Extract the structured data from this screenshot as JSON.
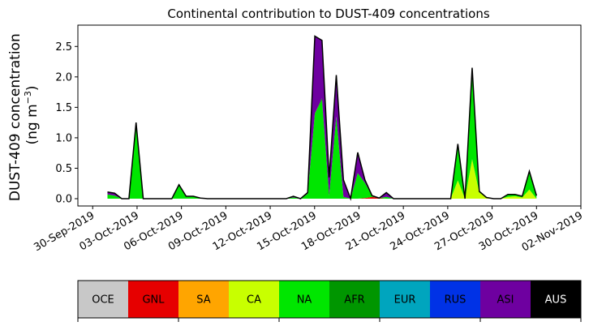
{
  "chart_data": {
    "type": "area",
    "title": "Continental contribution to DUST-409 concentrations",
    "ylabel_line1": "DUST-409 concentration",
    "ylabel_line2_prefix": "(ng m",
    "ylabel_line2_sup": "−3",
    "ylabel_line2_suffix": ")",
    "xlabel": "",
    "x_start": "2019-10-01",
    "x_end": "2019-10-30",
    "xlim": [
      "2019-09-29",
      "2019-11-02"
    ],
    "ylim": [
      -0.12,
      2.85
    ],
    "yticks": [
      0.0,
      0.5,
      1.0,
      1.5,
      2.0,
      2.5
    ],
    "ytick_labels": [
      "0.0",
      "0.5",
      "1.0",
      "1.5",
      "2.0",
      "2.5"
    ],
    "xticks": [
      "2019-09-30",
      "2019-10-03",
      "2019-10-06",
      "2019-10-09",
      "2019-10-12",
      "2019-10-15",
      "2019-10-18",
      "2019-10-21",
      "2019-10-24",
      "2019-10-27",
      "2019-10-30",
      "2019-11-02"
    ],
    "xtick_labels": [
      "30-Sep-2019",
      "03-Oct-2019",
      "06-Oct-2019",
      "09-Oct-2019",
      "12-Oct-2019",
      "15-Oct-2019",
      "18-Oct-2019",
      "21-Oct-2019",
      "24-Oct-2019",
      "27-Oct-2019",
      "30-Oct-2019",
      "02-Nov-2019"
    ],
    "grid": false,
    "legend_position": "bottom",
    "series": [
      {
        "name": "OCE",
        "color": "#c8c8c8",
        "values": [
          0,
          0,
          0,
          0,
          0,
          0,
          0,
          0,
          0,
          0,
          0,
          0,
          0,
          0,
          0,
          0,
          0,
          0,
          0,
          0,
          0,
          0,
          0,
          0,
          0,
          0,
          0,
          0,
          0,
          0,
          0,
          0,
          0,
          0,
          0,
          0,
          0,
          0,
          0,
          0,
          0,
          0,
          0,
          0,
          0,
          0,
          0,
          0,
          0,
          0,
          0,
          0,
          0,
          0,
          0,
          0,
          0,
          0,
          0,
          0,
          0
        ]
      },
      {
        "name": "GNL",
        "color": "#e60000",
        "values": [
          0,
          0,
          0,
          0,
          0,
          0,
          0,
          0,
          0,
          0,
          0,
          0,
          0,
          0,
          0,
          0,
          0,
          0,
          0,
          0,
          0,
          0,
          0,
          0,
          0,
          0,
          0,
          0,
          0,
          0,
          0,
          0,
          0,
          0,
          0,
          0,
          0.01,
          0.03,
          0.01,
          0,
          0,
          0,
          0,
          0,
          0,
          0,
          0,
          0,
          0,
          0,
          0,
          0,
          0,
          0,
          0,
          0,
          0,
          0,
          0,
          0,
          0
        ]
      },
      {
        "name": "SA",
        "color": "#ffa500",
        "values": [
          0,
          0,
          0,
          0,
          0,
          0,
          0,
          0,
          0,
          0,
          0,
          0,
          0,
          0,
          0,
          0,
          0,
          0,
          0,
          0,
          0,
          0,
          0,
          0,
          0,
          0,
          0,
          0,
          0,
          0,
          0,
          0,
          0,
          0,
          0,
          0,
          0,
          0,
          0,
          0,
          0,
          0,
          0,
          0,
          0,
          0,
          0,
          0,
          0,
          0,
          0,
          0,
          0,
          0,
          0,
          0,
          0,
          0,
          0,
          0,
          0
        ]
      },
      {
        "name": "CA",
        "color": "#c8ff00",
        "values": [
          0,
          0,
          0,
          0,
          0,
          0,
          0,
          0,
          0,
          0,
          0,
          0,
          0,
          0,
          0,
          0,
          0,
          0,
          0,
          0,
          0,
          0,
          0,
          0,
          0,
          0,
          0,
          0,
          0,
          0,
          0,
          0,
          0,
          0,
          0,
          0,
          0,
          0,
          0,
          0,
          0,
          0,
          0,
          0,
          0,
          0,
          0,
          0,
          0,
          0.3,
          0,
          0.65,
          0.1,
          0.02,
          0,
          0,
          0.03,
          0.04,
          0.02,
          0.15,
          0
        ]
      },
      {
        "name": "NA",
        "color": "#00e600",
        "values": [
          0.07,
          0.05,
          0,
          0,
          1.25,
          0,
          0,
          0,
          0,
          0,
          0.22,
          0.04,
          0.04,
          0.01,
          0,
          0,
          0,
          0,
          0,
          0,
          0,
          0,
          0,
          0,
          0,
          0,
          0.02,
          0,
          0.08,
          1.4,
          1.62,
          0.05,
          1.35,
          0.03,
          0,
          0.42,
          0.25,
          0.02,
          0,
          0.03,
          0,
          0,
          0,
          0,
          0,
          0,
          0,
          0,
          0,
          0.6,
          0,
          1.5,
          0.02,
          0,
          0,
          0,
          0.04,
          0.03,
          0.02,
          0.3,
          0.03
        ]
      },
      {
        "name": "AFR",
        "color": "#009600",
        "values": [
          0,
          0,
          0,
          0,
          0,
          0,
          0,
          0,
          0,
          0,
          0,
          0,
          0,
          0,
          0,
          0,
          0,
          0,
          0,
          0,
          0,
          0,
          0,
          0,
          0,
          0,
          0,
          0,
          0,
          0,
          0.03,
          0,
          0,
          0,
          0,
          0,
          0,
          0,
          0,
          0,
          0,
          0,
          0,
          0,
          0,
          0,
          0,
          0,
          0,
          0,
          0,
          0,
          0,
          0,
          0,
          0,
          0,
          0,
          0,
          0,
          0
        ]
      },
      {
        "name": "EUR",
        "color": "#00a5be",
        "values": [
          0,
          0,
          0,
          0,
          0,
          0,
          0,
          0,
          0,
          0,
          0,
          0,
          0,
          0,
          0,
          0,
          0,
          0,
          0,
          0,
          0,
          0,
          0,
          0,
          0,
          0,
          0,
          0,
          0,
          0,
          0,
          0,
          0,
          0,
          0,
          0,
          0,
          0,
          0,
          0,
          0,
          0,
          0,
          0,
          0,
          0,
          0,
          0,
          0,
          0,
          0,
          0,
          0,
          0,
          0,
          0,
          0,
          0,
          0,
          0,
          0
        ]
      },
      {
        "name": "RUS",
        "color": "#0032e6",
        "values": [
          0,
          0,
          0,
          0,
          0,
          0,
          0,
          0,
          0,
          0,
          0,
          0,
          0,
          0,
          0,
          0,
          0,
          0,
          0,
          0,
          0,
          0,
          0,
          0,
          0,
          0,
          0,
          0,
          0,
          0,
          0,
          0,
          0,
          0,
          0,
          0,
          0,
          0,
          0,
          0,
          0,
          0,
          0,
          0,
          0,
          0,
          0,
          0,
          0,
          0,
          0,
          0,
          0,
          0,
          0,
          0,
          0,
          0,
          0,
          0,
          0
        ]
      },
      {
        "name": "ASI",
        "color": "#6e00a0",
        "values": [
          0.04,
          0.04,
          0,
          0,
          0,
          0,
          0,
          0,
          0,
          0,
          0.01,
          0,
          0,
          0,
          0,
          0,
          0,
          0,
          0,
          0,
          0,
          0,
          0,
          0,
          0,
          0,
          0.02,
          0,
          0.02,
          1.27,
          0.95,
          0.3,
          0.68,
          0.28,
          0,
          0.34,
          0.05,
          0,
          0,
          0.07,
          0,
          0,
          0,
          0,
          0,
          0,
          0,
          0,
          0,
          0,
          0,
          0,
          0,
          0,
          0,
          0,
          0,
          0,
          0,
          0,
          0.02
        ]
      },
      {
        "name": "AUS",
        "color": "#000000",
        "values": [
          0,
          0,
          0,
          0,
          0,
          0,
          0,
          0,
          0,
          0,
          0,
          0,
          0,
          0,
          0,
          0,
          0,
          0,
          0,
          0,
          0,
          0,
          0,
          0,
          0,
          0,
          0,
          0,
          0,
          0,
          0,
          0,
          0,
          0,
          0,
          0,
          0,
          0,
          0,
          0,
          0,
          0,
          0,
          0,
          0,
          0,
          0,
          0,
          0,
          0,
          0,
          0,
          0,
          0,
          0,
          0,
          0,
          0,
          0,
          0,
          0
        ]
      }
    ]
  }
}
